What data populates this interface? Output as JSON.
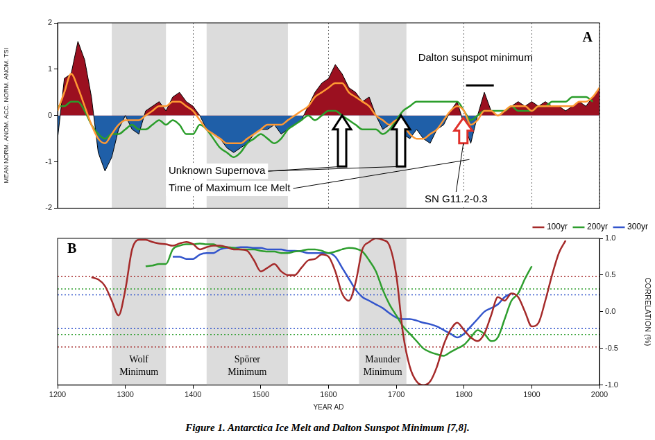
{
  "chart_data": [
    {
      "type": "line",
      "panel_label": "A",
      "y_label": "MEAN NORM. ANOM. ACC. NORM. ANOM. TSI",
      "x": [
        1200,
        1210,
        1220,
        1230,
        1240,
        1250,
        1260,
        1270,
        1280,
        1290,
        1300,
        1310,
        1320,
        1330,
        1340,
        1350,
        1360,
        1370,
        1380,
        1390,
        1400,
        1410,
        1420,
        1430,
        1440,
        1450,
        1460,
        1470,
        1480,
        1490,
        1500,
        1510,
        1520,
        1530,
        1540,
        1550,
        1560,
        1570,
        1580,
        1590,
        1600,
        1610,
        1620,
        1630,
        1640,
        1650,
        1660,
        1670,
        1680,
        1690,
        1700,
        1710,
        1720,
        1730,
        1740,
        1750,
        1760,
        1770,
        1780,
        1790,
        1800,
        1810,
        1820,
        1830,
        1840,
        1850,
        1860,
        1870,
        1880,
        1890,
        1900,
        1910,
        1920,
        1930,
        1940,
        1950,
        1960,
        1970,
        1980,
        1990,
        2000
      ],
      "xlim": [
        1200,
        2000
      ],
      "xticks": [
        1200,
        1300,
        1400,
        1500,
        1600,
        1700,
        1800,
        1900,
        2000
      ],
      "ylim": [
        -2,
        2
      ],
      "yticks": [
        -2,
        -1,
        0,
        1,
        2
      ],
      "grid": "x",
      "tick_labels": "y",
      "series": [
        {
          "type": "area",
          "color": "#000000",
          "colors": [
            "#9b1020",
            "#1f5fa8"
          ],
          "values": [
            -0.5,
            0.8,
            0.9,
            1.6,
            1.2,
            0.4,
            -0.8,
            -1.2,
            -0.9,
            -0.3,
            0,
            -0.3,
            -0.4,
            0.1,
            0.2,
            0.3,
            0.1,
            0.4,
            0.5,
            0.3,
            0.2,
            0,
            -0.3,
            -0.4,
            -0.5,
            -0.7,
            -0.8,
            -0.7,
            -0.6,
            -0.4,
            -0.3,
            -0.3,
            -0.2,
            -0.4,
            -0.3,
            -0.2,
            -0.1,
            0.2,
            0.5,
            0.7,
            0.8,
            1.1,
            0.9,
            0.6,
            0.5,
            0.3,
            0.4,
            0,
            -0.3,
            -0.2,
            -0.1,
            -0.4,
            -0.5,
            -0.3,
            -0.5,
            -0.6,
            -0.3,
            -0.2,
            0.1,
            0.3,
            -0.2,
            -0.6,
            0,
            0.5,
            0.1,
            0,
            0.1,
            0.2,
            0.3,
            0.2,
            0.3,
            0.2,
            0.3,
            0.2,
            0.2,
            0.1,
            0.2,
            0.3,
            0.2,
            0.4,
            0.6
          ]
        },
        {
          "color": "#ff9933",
          "values": [
            0.1,
            0.5,
            0.9,
            0.6,
            0.2,
            -0.2,
            -0.5,
            -0.6,
            -0.4,
            -0.2,
            -0.1,
            -0.1,
            -0.1,
            0,
            0.1,
            0.2,
            0.2,
            0.3,
            0.3,
            0.2,
            0.1,
            -0.1,
            -0.3,
            -0.4,
            -0.5,
            -0.6,
            -0.6,
            -0.6,
            -0.5,
            -0.4,
            -0.3,
            -0.2,
            -0.2,
            -0.2,
            -0.1,
            0,
            0.1,
            0.2,
            0.4,
            0.5,
            0.6,
            0.7,
            0.7,
            0.5,
            0.4,
            0.3,
            0.2,
            0,
            -0.1,
            -0.2,
            -0.1,
            -0.2,
            -0.4,
            -0.5,
            -0.5,
            -0.4,
            -0.3,
            -0.1,
            0.1,
            0.2,
            0.1,
            -0.2,
            -0.1,
            0.1,
            0.1,
            0,
            0.1,
            0.2,
            0.2,
            0.2,
            0.1,
            0.2,
            0.2,
            0.2,
            0.2,
            0.2,
            0.2,
            0.3,
            0.3,
            0.4,
            0.6
          ]
        },
        {
          "color": "#2a9d2a",
          "values": [
            0.2,
            0.2,
            0.3,
            0.3,
            0.1,
            -0.2,
            -0.4,
            -0.5,
            -0.4,
            -0.4,
            -0.3,
            -0.2,
            -0.3,
            -0.3,
            -0.2,
            -0.1,
            -0.2,
            -0.1,
            -0.2,
            -0.4,
            -0.4,
            -0.2,
            -0.3,
            -0.5,
            -0.7,
            -0.8,
            -0.9,
            -0.8,
            -0.6,
            -0.5,
            -0.4,
            -0.5,
            -0.6,
            -0.5,
            -0.3,
            -0.2,
            -0.1,
            0,
            -0.1,
            0,
            0.1,
            0.1,
            0,
            -0.1,
            -0.2,
            -0.3,
            -0.3,
            -0.3,
            -0.4,
            -0.3,
            -0.1,
            0.1,
            0.2,
            0.3,
            0.3,
            0.3,
            0.3,
            0.3,
            0.3,
            0.3,
            0.1,
            -0.1,
            0,
            0.1,
            0.1,
            0.1,
            0.1,
            0.2,
            0.1,
            0.1,
            0.1,
            0.2,
            0.2,
            0.3,
            0.3,
            0.3,
            0.4,
            0.4,
            0.4,
            0.3,
            null
          ]
        }
      ],
      "shaded_ranges": [
        {
          "x": [
            1280,
            1360
          ]
        },
        {
          "x": [
            1420,
            1540
          ]
        },
        {
          "x": [
            1645,
            1715
          ]
        }
      ],
      "arrows": [
        {
          "x": 1620,
          "y": [
            -1.1,
            0
          ],
          "color": "#000000"
        },
        {
          "x": 1707,
          "y": [
            -1.1,
            0
          ],
          "color": "#000000"
        },
        {
          "x": 1799,
          "y": [
            -0.6,
            -0.05
          ],
          "color": "#e0302a"
        }
      ],
      "marked_ranges": [
        {
          "text": "Dalton sunspot minimum",
          "x": [
            1803,
            1844
          ],
          "y": 0.65
        }
      ],
      "annotations": [
        {
          "text": "Unknown Supernova",
          "points_to": [
            [
              1620,
              -1.1
            ],
            [
              1707,
              -1.1
            ]
          ]
        },
        {
          "text": "Time of Maximum Ice Melt",
          "points_to": [
            [
              1808,
              -0.95
            ]
          ]
        },
        {
          "text": "SN G11.2-0.3",
          "points_to": [
            [
              1799,
              -0.6
            ]
          ]
        }
      ]
    },
    {
      "type": "line",
      "panel_label": "B",
      "x_label": "YEAR AD",
      "y_label": "CORRELATION (%)",
      "x": [
        1200,
        1210,
        1220,
        1230,
        1240,
        1250,
        1260,
        1270,
        1280,
        1290,
        1300,
        1310,
        1320,
        1330,
        1340,
        1350,
        1360,
        1370,
        1380,
        1390,
        1400,
        1410,
        1420,
        1430,
        1440,
        1450,
        1460,
        1470,
        1480,
        1490,
        1500,
        1510,
        1520,
        1530,
        1540,
        1550,
        1560,
        1570,
        1580,
        1590,
        1600,
        1610,
        1620,
        1630,
        1640,
        1650,
        1660,
        1670,
        1680,
        1690,
        1700,
        1710,
        1720,
        1730,
        1740,
        1750,
        1760,
        1770,
        1780,
        1790,
        1800,
        1810,
        1820,
        1830,
        1840,
        1850,
        1860,
        1870,
        1880,
        1890,
        1900,
        1910,
        1920,
        1930,
        1940,
        1950,
        1960,
        1970,
        1980,
        1990,
        2000
      ],
      "xlim": [
        1200,
        2000
      ],
      "xticks": [
        1200,
        1300,
        1400,
        1500,
        1600,
        1700,
        1800,
        1900,
        2000
      ],
      "ylim": [
        -1,
        1
      ],
      "yticks": [
        {
          "value": -1,
          "label": "-1.0"
        },
        {
          "value": -0.5,
          "label": "-0.5"
        },
        {
          "value": 0,
          "label": "0.0"
        },
        {
          "value": 0.5,
          "label": "0.5"
        },
        {
          "value": 1,
          "label": "1.0"
        }
      ],
      "grid": false,
      "legend": "top-right",
      "series": [
        {
          "name": "100yr",
          "color": "#a52a2a",
          "values": [
            null,
            null,
            null,
            null,
            null,
            0.47,
            0.44,
            0.35,
            0.15,
            -0.05,
            0.3,
            0.85,
            0.98,
            0.98,
            0.95,
            0.93,
            0.92,
            0.9,
            0.93,
            0.95,
            0.92,
            0.85,
            0.88,
            0.9,
            0.9,
            0.88,
            0.85,
            0.85,
            0.83,
            0.7,
            0.55,
            0.6,
            0.65,
            0.55,
            0.5,
            0.5,
            0.6,
            0.7,
            0.72,
            0.78,
            0.75,
            0.55,
            0.25,
            0.15,
            0.4,
            0.85,
            0.95,
            1.0,
            0.98,
            0.9,
            0.5,
            -0.3,
            -0.75,
            -0.95,
            -1.0,
            -0.95,
            -0.75,
            -0.45,
            -0.25,
            -0.15,
            -0.25,
            -0.35,
            -0.4,
            -0.3,
            -0.05,
            0.2,
            0.15,
            0.25,
            0.2,
            0,
            -0.2,
            -0.15,
            0.15,
            0.5,
            0.8,
            0.97,
            null,
            null,
            null,
            null,
            null
          ]
        },
        {
          "name": "200yr",
          "color": "#2e9e2e",
          "values": [
            null,
            null,
            null,
            null,
            null,
            null,
            null,
            null,
            null,
            null,
            null,
            null,
            null,
            0.62,
            0.63,
            0.65,
            0.65,
            0.85,
            0.9,
            0.92,
            0.92,
            0.93,
            0.92,
            0.92,
            0.88,
            0.88,
            0.87,
            0.85,
            0.85,
            0.85,
            0.83,
            0.82,
            0.82,
            0.8,
            0.8,
            0.82,
            0.83,
            0.85,
            0.85,
            0.83,
            0.8,
            0.82,
            0.85,
            0.87,
            0.86,
            0.82,
            0.7,
            0.55,
            0.3,
            0.1,
            -0.05,
            -0.2,
            -0.3,
            -0.4,
            -0.5,
            -0.55,
            -0.58,
            -0.6,
            -0.55,
            -0.5,
            -0.45,
            -0.35,
            -0.25,
            -0.3,
            -0.4,
            -0.35,
            -0.1,
            0.15,
            0.25,
            0.45,
            0.62,
            null,
            null,
            null,
            null,
            null,
            null,
            null,
            null,
            null,
            null
          ]
        },
        {
          "name": "300yr",
          "color": "#3355cc",
          "values": [
            null,
            null,
            null,
            null,
            null,
            null,
            null,
            null,
            null,
            null,
            null,
            null,
            null,
            null,
            null,
            null,
            null,
            0.75,
            0.75,
            0.72,
            0.72,
            0.78,
            0.8,
            0.8,
            0.85,
            0.87,
            0.87,
            0.88,
            0.88,
            0.87,
            0.87,
            0.85,
            0.85,
            0.85,
            0.83,
            0.83,
            0.82,
            0.8,
            0.8,
            0.8,
            0.8,
            0.75,
            0.6,
            0.45,
            0.3,
            0.2,
            0.15,
            0.1,
            0.05,
            -0.02,
            -0.08,
            -0.1,
            -0.1,
            -0.12,
            -0.15,
            -0.17,
            -0.2,
            -0.25,
            -0.3,
            -0.35,
            -0.3,
            -0.2,
            -0.1,
            0,
            0.05,
            0.1,
            0.2,
            0.25,
            null,
            null,
            null,
            null,
            null,
            null,
            null,
            null,
            null,
            null,
            null,
            null,
            null
          ]
        }
      ],
      "reference_lines": [
        {
          "y": 0.48,
          "color": "#a52a2a",
          "line_style": "dotted"
        },
        {
          "y": -0.48,
          "color": "#a52a2a",
          "line_style": "dotted"
        },
        {
          "y": 0.31,
          "color": "#2e9e2e",
          "line_style": "dotted"
        },
        {
          "y": -0.31,
          "color": "#2e9e2e",
          "line_style": "dotted"
        },
        {
          "y": 0.23,
          "color": "#3355cc",
          "line_style": "dotted"
        },
        {
          "y": -0.23,
          "color": "#3355cc",
          "line_style": "dotted"
        }
      ],
      "shaded_ranges": [
        {
          "x": [
            1280,
            1360
          ],
          "label": "Wolf Minimum"
        },
        {
          "x": [
            1420,
            1540
          ],
          "label": "Spörer Minimum"
        },
        {
          "x": [
            1645,
            1715
          ],
          "label": "Maunder Minimum"
        }
      ]
    }
  ],
  "caption": "Figure 1. Antarctica Ice Melt and Dalton Sunspot Minimum [7,8]."
}
